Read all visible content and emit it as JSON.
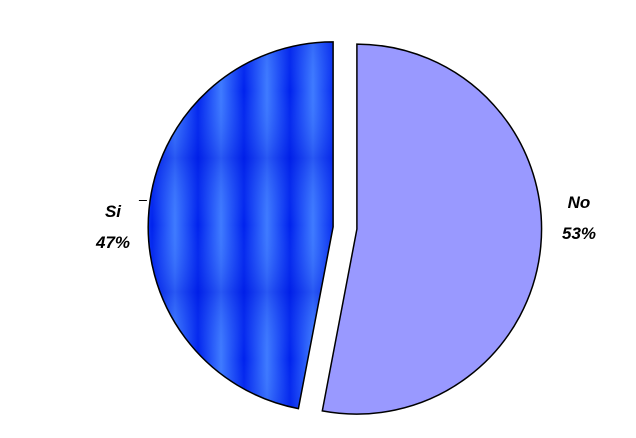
{
  "chart_data": {
    "type": "pie",
    "categories": [
      "No",
      "Si"
    ],
    "values": [
      53,
      47
    ],
    "labels": [
      "No",
      "Si"
    ],
    "percent_labels": [
      "53%",
      "47%"
    ],
    "colors": [
      "#9999ff",
      "#1a3cff"
    ],
    "exploded": true,
    "legend": "none"
  }
}
